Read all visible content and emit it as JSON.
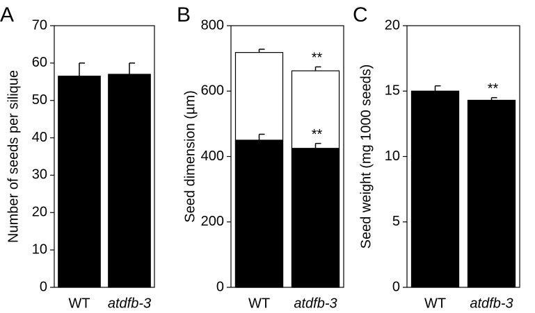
{
  "chart_data": [
    {
      "type": "bar",
      "label": "A",
      "ylabel": "Number of seeds per silique",
      "categories": [
        "WT",
        "atdfb-3"
      ],
      "series": [
        {
          "color": "#000000",
          "values": [
            56.5,
            57
          ],
          "errors": [
            3.5,
            3
          ],
          "value_annotations": [
            null,
            null
          ]
        }
      ],
      "ylim": [
        0,
        70
      ],
      "yticks": [
        0,
        10,
        20,
        30,
        40,
        50,
        60,
        70
      ]
    },
    {
      "type": "bar",
      "label": "B",
      "ylabel": "Seed dimension (µm)",
      "barmode": "overlay",
      "categories": [
        "WT",
        "atdfb-3"
      ],
      "series": [
        {
          "color": "#ffffff",
          "values": [
            718,
            662
          ],
          "errors": [
            10,
            12
          ],
          "value_annotations": [
            null,
            "**"
          ]
        },
        {
          "color": "#000000",
          "values": [
            450,
            425
          ],
          "errors": [
            18,
            15
          ],
          "value_annotations": [
            null,
            "**"
          ]
        }
      ],
      "ylim": [
        0,
        800
      ],
      "yticks": [
        0,
        200,
        400,
        600,
        800
      ]
    },
    {
      "type": "bar",
      "label": "C",
      "ylabel": "Seed weight (mg 1000 seeds)",
      "categories": [
        "WT",
        "atdfb-3"
      ],
      "series": [
        {
          "color": "#000000",
          "values": [
            15.0,
            14.3
          ],
          "errors": [
            0.4,
            0.2
          ],
          "value_annotations": [
            null,
            "**"
          ]
        }
      ],
      "ylim": [
        0,
        20
      ],
      "yticks": [
        0,
        5,
        10,
        15,
        20
      ]
    }
  ]
}
